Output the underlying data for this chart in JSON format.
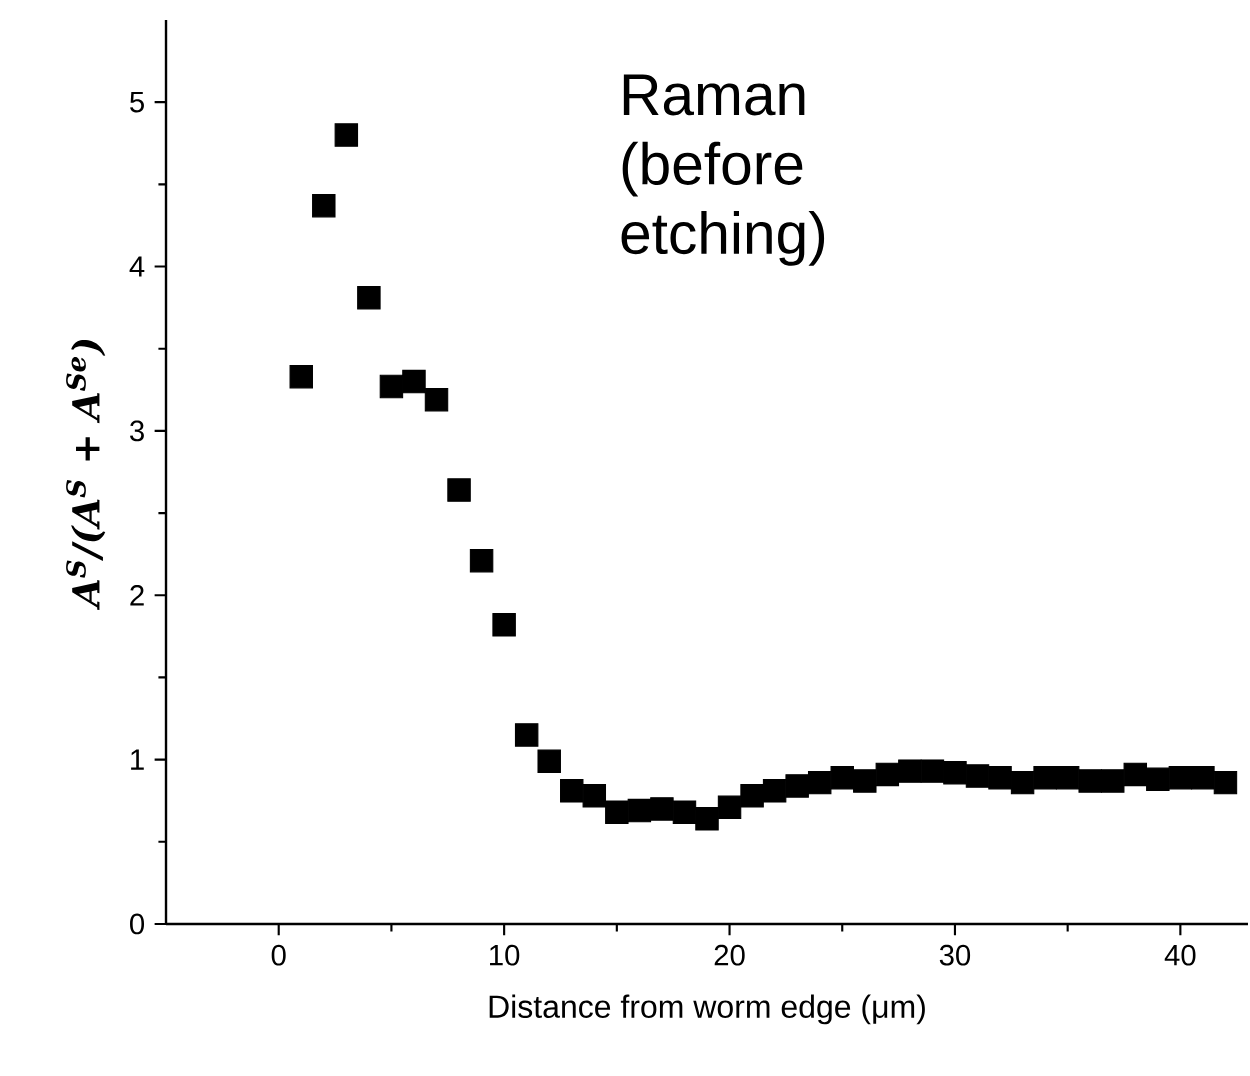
{
  "chart_data": {
    "type": "scatter",
    "xlabel": "Distance from worm edge (μm)",
    "ylabel": "A$^{S}$/(A$^{S}$ + A$^{Se}$)",
    "annotations": [
      "Raman (before etching)"
    ],
    "x": [
      1,
      2,
      3,
      4,
      5,
      6,
      7,
      8,
      9,
      10,
      11,
      12,
      13,
      14,
      15,
      16,
      17,
      18,
      19,
      20,
      21,
      22,
      23,
      24,
      25,
      26,
      27,
      28,
      29,
      30,
      31,
      32,
      33,
      34,
      35,
      36,
      37,
      38,
      39,
      40,
      41,
      42
    ],
    "series": [
      {
        "color": "#000000",
        "values": [
          3.33,
          4.37,
          4.8,
          3.81,
          3.27,
          3.3,
          3.19,
          2.64,
          2.21,
          1.82,
          1.15,
          0.99,
          0.81,
          0.78,
          0.68,
          0.69,
          0.7,
          0.68,
          0.64,
          0.71,
          0.78,
          0.81,
          0.84,
          0.86,
          0.89,
          0.87,
          0.91,
          0.93,
          0.93,
          0.92,
          0.9,
          0.89,
          0.86,
          0.89,
          0.89,
          0.87,
          0.87,
          0.91,
          0.88,
          0.89,
          0.89,
          0.86
        ]
      }
    ],
    "marker": "square",
    "xlim": [
      -5,
      43
    ],
    "ylim": [
      0,
      5.5
    ],
    "xticks": [
      0,
      10,
      20,
      30,
      40
    ],
    "yticks": [
      0,
      1,
      2,
      3,
      4,
      5
    ]
  }
}
